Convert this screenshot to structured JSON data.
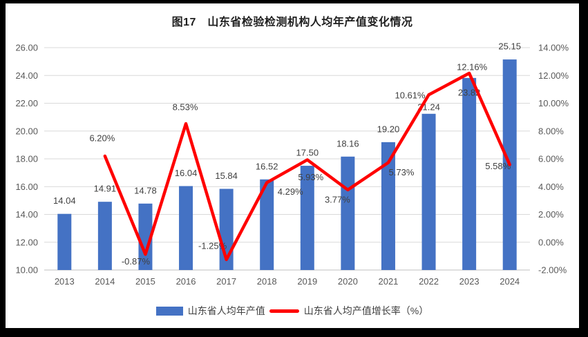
{
  "title": "图17　山东省检验检测机构人均年产值变化情况",
  "colors": {
    "bar": "#4472C4",
    "line": "#FF0000",
    "data_label": "#404040",
    "axis_text": "#595959",
    "gridline": "#D9D9D9",
    "axis_line": "#BFBFBF",
    "frame": "#000000",
    "background": "#FFFFFF"
  },
  "legend": {
    "items": [
      {
        "label": "山东省人均年产值",
        "marker": "bar"
      },
      {
        "label": "山东省人均产值增长率（%）",
        "marker": "line"
      }
    ]
  },
  "chart_data": {
    "type": "bar+line",
    "title": "图17　山东省检验检测机构人均年产值变化情况",
    "categories": [
      "2013",
      "2014",
      "2015",
      "2016",
      "2017",
      "2018",
      "2019",
      "2020",
      "2021",
      "2022",
      "2023",
      "2024"
    ],
    "series": [
      {
        "name": "山东省人均年产值",
        "type": "bar",
        "axis": "left",
        "color": "#4472C4",
        "values": [
          14.04,
          14.91,
          14.78,
          16.04,
          15.84,
          16.52,
          17.5,
          18.16,
          19.2,
          21.24,
          23.82,
          25.15
        ],
        "labels": [
          "14.04",
          "14.91",
          "14.78",
          "16.04",
          "15.84",
          "16.52",
          "17.50",
          "18.16",
          "19.20",
          "21.24",
          "23.82",
          "25.15"
        ]
      },
      {
        "name": "山东省人均产值增长率（%）",
        "type": "line",
        "axis": "right",
        "color": "#FF0000",
        "values": [
          null,
          6.2,
          -0.87,
          8.53,
          -1.25,
          4.29,
          5.93,
          3.77,
          5.73,
          10.61,
          12.16,
          5.58
        ],
        "labels": [
          null,
          "6.20%",
          "-0.87%",
          "8.53%",
          "-1.25%",
          "4.29%",
          "5.93%",
          "3.77%",
          "5.73%",
          "10.61%",
          "12.16%",
          "5.58%"
        ]
      }
    ],
    "left_axis": {
      "min": 10,
      "max": 26,
      "step": 2,
      "ticks": [
        "26.00",
        "24.00",
        "22.00",
        "20.00",
        "18.00",
        "16.00",
        "14.00",
        "12.00",
        "10.00"
      ]
    },
    "right_axis": {
      "min": -2,
      "max": 14,
      "step": 2,
      "ticks": [
        "14.00%",
        "12.00%",
        "10.00%",
        "8.00%",
        "6.00%",
        "4.00%",
        "2.00%",
        "0.00%",
        "-2.00%"
      ]
    },
    "grid": true,
    "legend_position": "bottom"
  }
}
